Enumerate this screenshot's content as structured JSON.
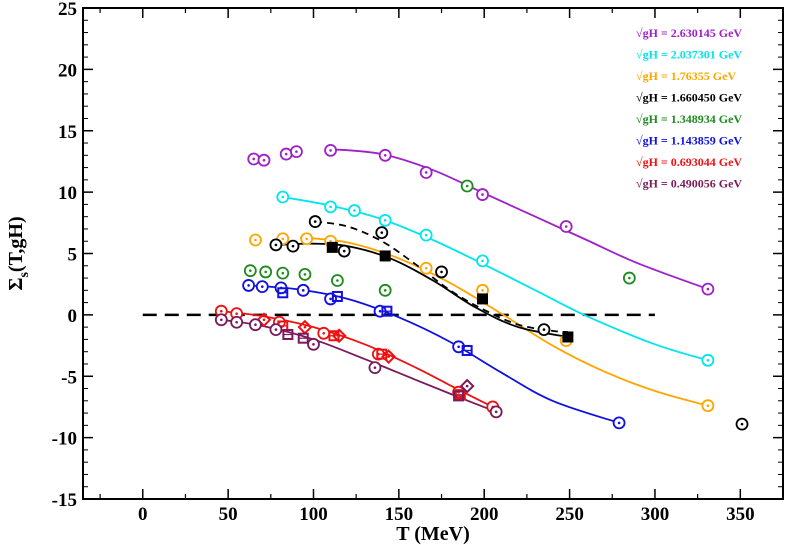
{
  "chart_data": {
    "type": "scatter",
    "title": "",
    "xlabel": "T (MeV)",
    "ylabel_main": "Σ",
    "ylabel_sub": "s",
    "ylabel_rest": "(T,gH)",
    "xlim": [
      -35,
      375
    ],
    "ylim": [
      -15,
      25
    ],
    "xticks": [
      0,
      50,
      100,
      150,
      200,
      250,
      300,
      350
    ],
    "yticks": [
      -15,
      -10,
      -5,
      0,
      5,
      10,
      15,
      20,
      25
    ],
    "zero_line": {
      "x_start": 0,
      "x_end": 300,
      "y": 0,
      "style": "dashed"
    },
    "series": [
      {
        "name": "√gH = 2.630145  GeV",
        "color": "#a020c8",
        "points": [
          [
            65,
            12.7
          ],
          [
            71,
            12.6
          ],
          [
            84,
            13.1
          ],
          [
            90,
            13.3
          ],
          [
            110,
            13.4
          ],
          [
            142,
            13.0
          ],
          [
            166,
            11.6
          ],
          [
            199,
            9.8
          ],
          [
            248,
            7.2
          ],
          [
            331,
            2.1
          ]
        ],
        "fit": [
          [
            110,
            13.5
          ],
          [
            140,
            13.1
          ],
          [
            170,
            11.8
          ],
          [
            200,
            9.9
          ],
          [
            230,
            8.0
          ],
          [
            260,
            6.1
          ],
          [
            290,
            4.2
          ],
          [
            331,
            2.1
          ]
        ]
      },
      {
        "name": "√gH = 2.037301  GeV",
        "color": "#00e5ee",
        "points": [
          [
            82,
            9.6
          ],
          [
            110,
            8.8
          ],
          [
            124,
            8.5
          ],
          [
            142,
            7.7
          ],
          [
            166,
            6.5
          ],
          [
            199,
            4.4
          ],
          [
            331,
            -3.7
          ]
        ],
        "fit": [
          [
            82,
            9.6
          ],
          [
            110,
            8.9
          ],
          [
            140,
            7.8
          ],
          [
            170,
            6.1
          ],
          [
            200,
            4.1
          ],
          [
            230,
            2.0
          ],
          [
            260,
            -0.1
          ],
          [
            300,
            -2.4
          ],
          [
            331,
            -3.7
          ]
        ]
      },
      {
        "name": "√gH = 1.76355  GeV",
        "color": "#ffa500",
        "points": [
          [
            66,
            6.1
          ],
          [
            82,
            6.2
          ],
          [
            96,
            6.2
          ],
          [
            110,
            6.0
          ],
          [
            166,
            3.8
          ],
          [
            199,
            2.0
          ],
          [
            248,
            -2.1
          ],
          [
            331,
            -7.4
          ]
        ],
        "fit": [
          [
            92,
            6.3
          ],
          [
            120,
            5.9
          ],
          [
            150,
            4.6
          ],
          [
            180,
            2.6
          ],
          [
            210,
            0.1
          ],
          [
            240,
            -2.5
          ],
          [
            270,
            -4.6
          ],
          [
            300,
            -6.2
          ],
          [
            331,
            -7.4
          ]
        ]
      },
      {
        "name": "√gH = 1.660450  GeV",
        "color": "#000000",
        "points": [
          [
            78,
            5.7
          ],
          [
            88,
            5.6
          ],
          [
            101,
            7.6
          ],
          [
            118,
            5.2
          ],
          [
            140,
            6.7
          ],
          [
            175,
            3.5
          ],
          [
            235,
            -1.2
          ],
          [
            351,
            -8.9
          ]
        ],
        "squares": [
          [
            111,
            5.5
          ],
          [
            142,
            4.8
          ],
          [
            199,
            1.3
          ],
          [
            249,
            -1.8
          ]
        ],
        "fit": [
          [
            78,
            5.7
          ],
          [
            100,
            5.8
          ],
          [
            120,
            5.6
          ],
          [
            145,
            4.6
          ],
          [
            170,
            2.8
          ],
          [
            195,
            0.6
          ],
          [
            220,
            -1.0
          ],
          [
            249,
            -1.8
          ]
        ],
        "fit_dashed": [
          [
            101,
            7.6
          ],
          [
            120,
            7.2
          ],
          [
            140,
            6.0
          ],
          [
            160,
            4.1
          ],
          [
            180,
            2.0
          ],
          [
            200,
            0.4
          ],
          [
            220,
            -0.8
          ],
          [
            240,
            -1.3
          ],
          [
            249,
            -1.4
          ]
        ]
      },
      {
        "name": "√gH = 1.348934  GeV",
        "color": "#1e8b1e",
        "points": [
          [
            63,
            3.6
          ],
          [
            72,
            3.5
          ],
          [
            82,
            3.4
          ],
          [
            95,
            3.3
          ],
          [
            114,
            2.8
          ],
          [
            142,
            2.0
          ],
          [
            190,
            10.5
          ],
          [
            285,
            3.0
          ]
        ]
      },
      {
        "name": "√gH = 1.143859  GeV",
        "color": "#1010e0",
        "points": [
          [
            62,
            2.4
          ],
          [
            70,
            2.3
          ],
          [
            81,
            2.2
          ],
          [
            94,
            2.0
          ],
          [
            110,
            1.3
          ],
          [
            139,
            0.3
          ],
          [
            185,
            -2.6
          ],
          [
            279,
            -8.8
          ]
        ],
        "squares": [
          [
            82,
            1.8
          ],
          [
            114,
            1.5
          ],
          [
            143,
            0.3
          ],
          [
            190,
            -2.9
          ]
        ],
        "fit": [
          [
            62,
            2.4
          ],
          [
            90,
            2.1
          ],
          [
            120,
            1.3
          ],
          [
            150,
            -0.2
          ],
          [
            180,
            -2.2
          ],
          [
            210,
            -4.7
          ],
          [
            240,
            -7.0
          ],
          [
            279,
            -8.8
          ]
        ]
      },
      {
        "name": "√gH = 0.693044  GeV",
        "color": "#ee1111",
        "points": [
          [
            46,
            0.3
          ],
          [
            55,
            0.1
          ],
          [
            80,
            -0.6
          ],
          [
            106,
            -1.5
          ],
          [
            138,
            -3.2
          ],
          [
            185,
            -6.3
          ],
          [
            205,
            -7.5
          ]
        ],
        "squares": [
          [
            82,
            -0.9
          ],
          [
            112,
            -1.7
          ],
          [
            140,
            -3.2
          ],
          [
            186,
            -6.5
          ]
        ],
        "diamonds": [
          [
            71,
            -0.4
          ],
          [
            95,
            -1.0
          ],
          [
            115,
            -1.7
          ],
          [
            144,
            -3.4
          ]
        ],
        "fit": [
          [
            46,
            0.3
          ],
          [
            70,
            -0.1
          ],
          [
            100,
            -1.0
          ],
          [
            130,
            -2.4
          ],
          [
            160,
            -4.3
          ],
          [
            185,
            -6.1
          ],
          [
            205,
            -7.5
          ]
        ]
      },
      {
        "name": "√gH = 0.490056  GeV",
        "color": "#7a1a5a",
        "points": [
          [
            46,
            -0.4
          ],
          [
            55,
            -0.6
          ],
          [
            66,
            -0.8
          ],
          [
            78,
            -1.2
          ],
          [
            100,
            -2.4
          ],
          [
            136,
            -4.3
          ],
          [
            207,
            -7.9
          ]
        ],
        "squares": [
          [
            85,
            -1.6
          ],
          [
            94,
            -1.9
          ],
          [
            185,
            -6.6
          ]
        ],
        "diamonds": [
          [
            190,
            -5.8
          ]
        ],
        "fit": [
          [
            46,
            -0.4
          ],
          [
            70,
            -0.9
          ],
          [
            100,
            -2.0
          ],
          [
            130,
            -3.6
          ],
          [
            160,
            -5.3
          ],
          [
            185,
            -6.7
          ],
          [
            207,
            -7.9
          ]
        ]
      }
    ],
    "legend_location": "top-right"
  }
}
